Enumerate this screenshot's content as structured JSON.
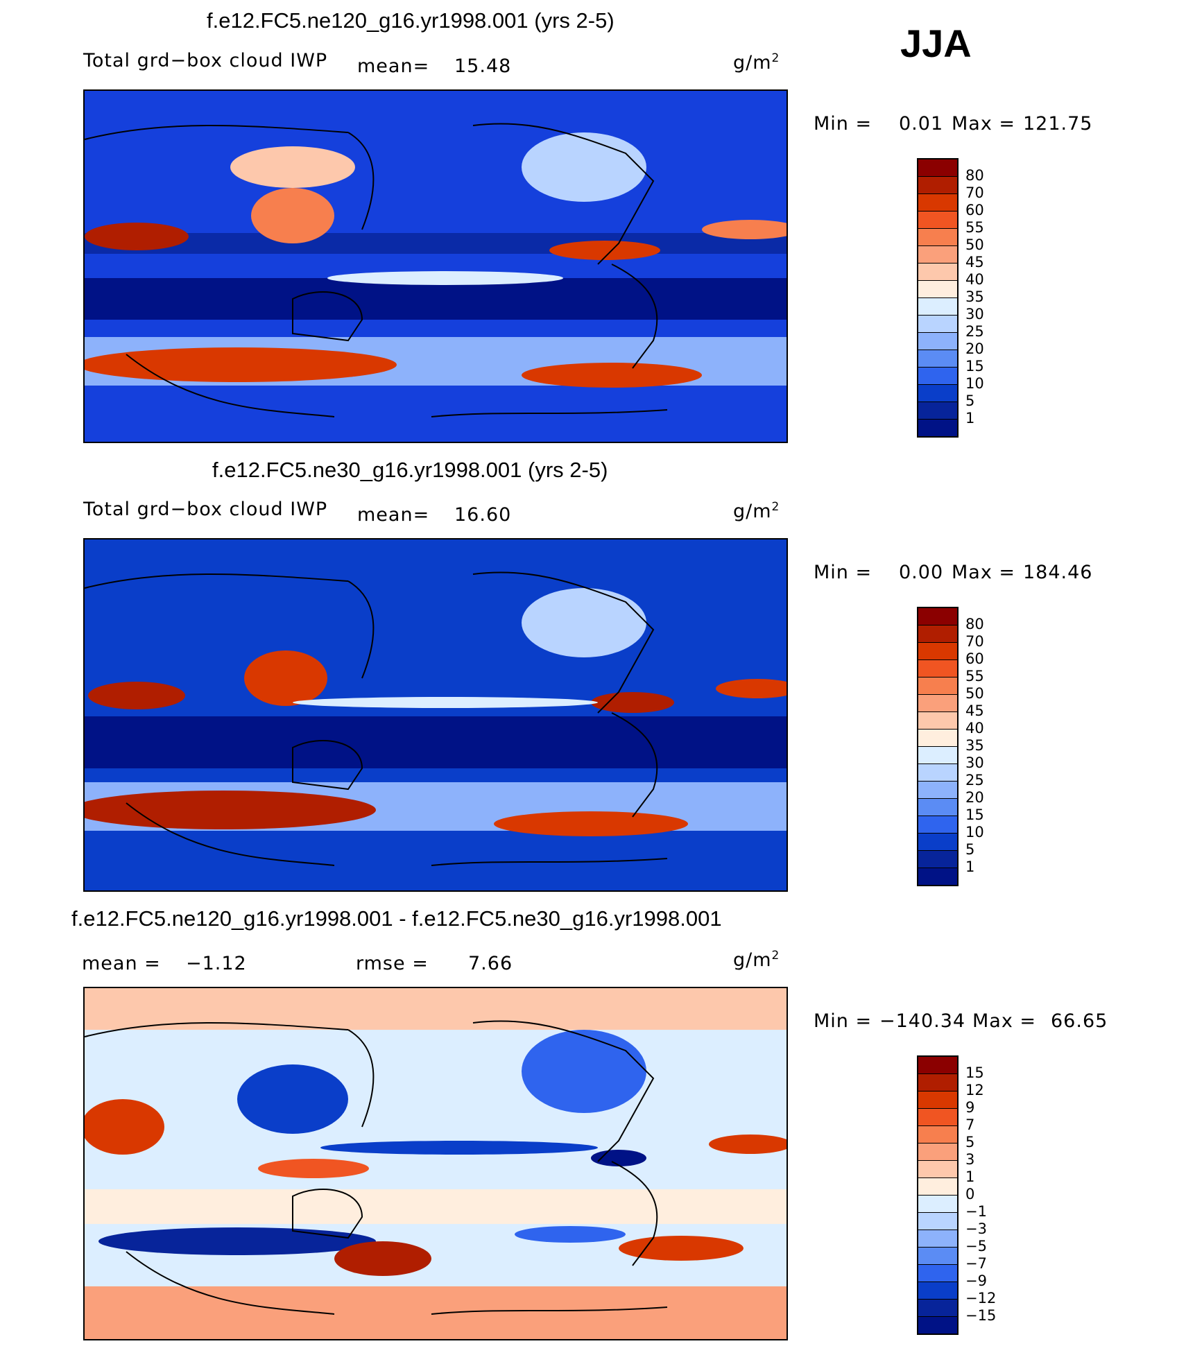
{
  "season": "JJA",
  "panels": [
    {
      "title": "f.e12.FC5.ne120_g16.yr1998.001 (yrs 2-5)",
      "variable": "Total grd−box cloud IWP",
      "stat_label": "mean=",
      "stat_value": "15.48",
      "units": "g/m",
      "units_sup": "2",
      "min_label": "Min =",
      "min_value": "0.01",
      "max_label": "Max =",
      "max_value": "121.75",
      "palette": "abs"
    },
    {
      "title": "f.e12.FC5.ne30_g16.yr1998.001 (yrs 2-5)",
      "variable": "Total grd−box cloud IWP",
      "stat_label": "mean=",
      "stat_value": "16.60",
      "units": "g/m",
      "units_sup": "2",
      "min_label": "Min =",
      "min_value": "0.00",
      "max_label": "Max =",
      "max_value": "184.46",
      "palette": "abs"
    },
    {
      "title": "f.e12.FC5.ne120_g16.yr1998.001 - f.e12.FC5.ne30_g16.yr1998.001",
      "stat_label": "mean =",
      "stat_value": "−1.12",
      "rmse_label": "rmse =",
      "rmse_value": "7.66",
      "units": "g/m",
      "units_sup": "2",
      "min_label": "Min =",
      "min_value": "−140.34",
      "max_label": "Max =",
      "max_value": "66.65",
      "palette": "diff"
    }
  ],
  "chart_data": {
    "type": "heatmap",
    "map_projection": "cylindrical equidistant, centered 180E",
    "colorbars": {
      "abs": {
        "levels": [
          "80",
          "70",
          "60",
          "55",
          "50",
          "45",
          "40",
          "35",
          "30",
          "25",
          "20",
          "15",
          "10",
          "5",
          "1"
        ],
        "colors": [
          "#8b0000",
          "#b01e00",
          "#d93800",
          "#f05522",
          "#f77f4e",
          "#faa07b",
          "#fdc8ac",
          "#ffeede",
          "#dceeff",
          "#b9d4ff",
          "#8db2fb",
          "#5b8cf4",
          "#2f64ee",
          "#0a3ec9",
          "#07249a",
          "#001286"
        ]
      },
      "diff": {
        "levels": [
          "15",
          "12",
          "9",
          "7",
          "5",
          "3",
          "1",
          "0",
          "−1",
          "−3",
          "−5",
          "−7",
          "−9",
          "−12",
          "−15"
        ],
        "colors": [
          "#8b0000",
          "#b01e00",
          "#d93800",
          "#f05522",
          "#f77f4e",
          "#faa07b",
          "#fdc8ac",
          "#ffeede",
          "#dceeff",
          "#b9d4ff",
          "#8db2fb",
          "#5b8cf4",
          "#2f64ee",
          "#0a3ec9",
          "#07249a",
          "#001286"
        ]
      }
    }
  }
}
